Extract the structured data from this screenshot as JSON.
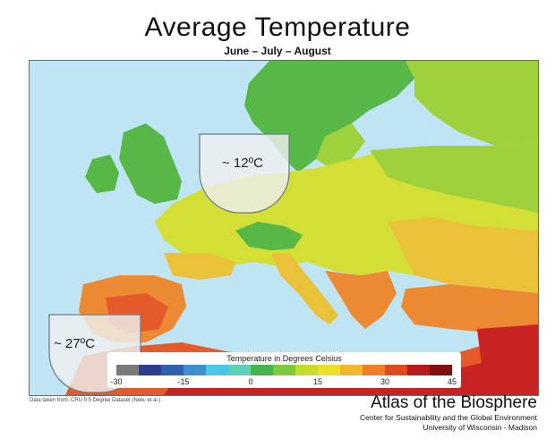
{
  "title": "Average  Temperature",
  "subtitle": "June – July – August",
  "annotations": {
    "north": "~ 12ºC",
    "south": "~ 27ºC"
  },
  "legend": {
    "title": "Temperature in Degrees Celsius",
    "ticks": [
      "-30",
      "-15",
      "0",
      "15",
      "30",
      "45"
    ],
    "colors": [
      "#7a7a7a",
      "#2c3d8f",
      "#2f5fb0",
      "#3c8fd0",
      "#49c7e8",
      "#5fd1b8",
      "#43b54a",
      "#7fca3a",
      "#c6dc2a",
      "#eee02a",
      "#f3b72a",
      "#ef7e24",
      "#df4a1e",
      "#b8191b",
      "#7e1010"
    ]
  },
  "map": {
    "colors": {
      "sea": "#bfe4f3",
      "cold": "#57b847",
      "cool": "#9ed13c",
      "mild": "#d4df35",
      "warm": "#e9c23a",
      "hot": "#ec8a34",
      "hotter": "#e45a2a",
      "hottest": "#c92222",
      "bubble": "#eef0f0"
    }
  },
  "source": "Data taken from: CRU 0.5 Degree Dataset (New, et al.)",
  "atlas": {
    "title": "Atlas of the Biosphere",
    "line1": "Center for Sustainability and the Global Environment",
    "line2": "University of Wisconsin - Madison"
  }
}
